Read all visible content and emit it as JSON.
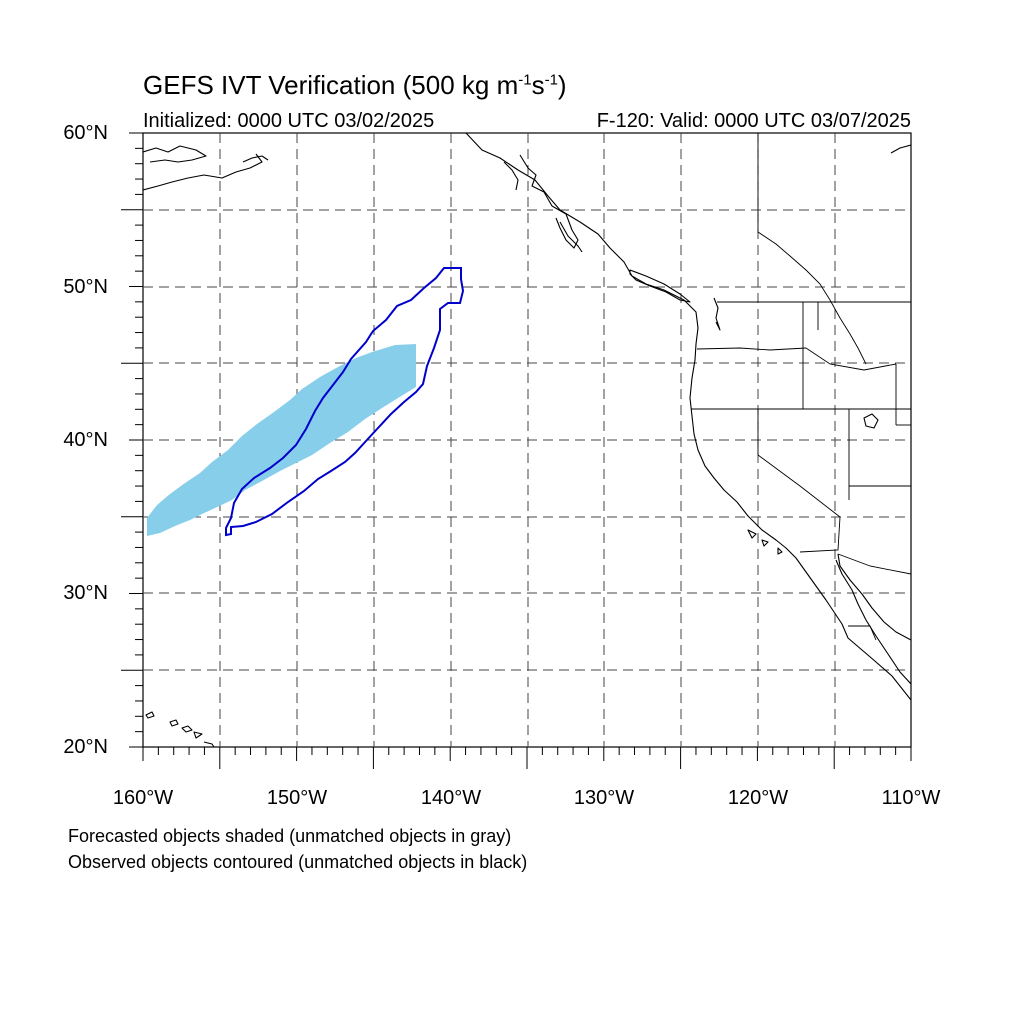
{
  "title": {
    "main": "GEFS IVT Verification (500 kg m",
    "exp1": "-1",
    "mid": "s",
    "exp2": "-1",
    "end": ")"
  },
  "subtitle_left": "Initialized: 0000 UTC 03/02/2025",
  "subtitle_right": "F-120: Valid: 0000 UTC 03/07/2025",
  "lat_labels": [
    "60°N",
    "50°N",
    "40°N",
    "30°N",
    "20°N"
  ],
  "lon_labels": [
    "160°W",
    "150°W",
    "140°W",
    "130°W",
    "120°W",
    "110°W"
  ],
  "map": {
    "lon_range": [
      -160,
      -110
    ],
    "lat_range": [
      20,
      60
    ],
    "grid_interval_deg": 5,
    "grid_style": "dashed",
    "coastline_color": "#000000",
    "forecast_fill_color": "#87ceeb",
    "observed_contour_color": "#0000cc"
  },
  "notes": {
    "line1": "Forecasted objects shaded (unmatched objects in gray)",
    "line2": "Observed objects contoured (unmatched objects in black)"
  }
}
